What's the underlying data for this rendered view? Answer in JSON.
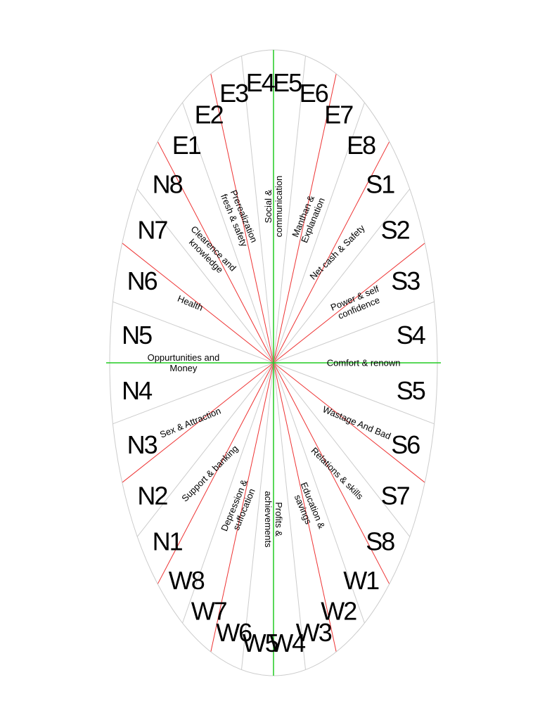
{
  "zones": [
    "E4",
    "E5",
    "E6",
    "E7",
    "E8",
    "S1",
    "S2",
    "S3",
    "S4",
    "S5",
    "S6",
    "S7",
    "S8",
    "W1",
    "W2",
    "W3",
    "W4",
    "W5",
    "W6",
    "W7",
    "W8",
    "N1",
    "N2",
    "N3",
    "N4",
    "N5",
    "N6",
    "N7",
    "N8",
    "E1",
    "E2",
    "E3"
  ],
  "areas": [
    {
      "lines": [
        "Social &",
        "communication"
      ]
    },
    {
      "lines": [
        "Manthan &",
        "Explanation"
      ]
    },
    {
      "lines": [
        "Net cash & Safety"
      ]
    },
    {
      "lines": [
        "Power & self",
        "confidence"
      ]
    },
    {
      "lines": [
        "Comfort & renown"
      ]
    },
    {
      "lines": [
        "Wastage And Bad"
      ]
    },
    {
      "lines": [
        "Relations & skills"
      ]
    },
    {
      "lines": [
        "Education &",
        "savings"
      ]
    },
    {
      "lines": [
        "Profits &",
        "achievements"
      ]
    },
    {
      "lines": [
        "Depression &",
        "suffocation"
      ]
    },
    {
      "lines": [
        "Support & banking"
      ]
    },
    {
      "lines": [
        "Sex & Attraction"
      ]
    },
    {
      "lines": [
        "Oppurtunities and",
        "Money"
      ]
    },
    {
      "lines": [
        "Health"
      ]
    },
    {
      "lines": [
        "Clearence and",
        "knowledge"
      ]
    },
    {
      "lines": [
        "Prerealization",
        "fresh & safety"
      ]
    }
  ],
  "colors": {
    "axis": "#22cc22",
    "major": "#ee3333",
    "minor": "#cccccc",
    "rim": "#cccccc"
  }
}
